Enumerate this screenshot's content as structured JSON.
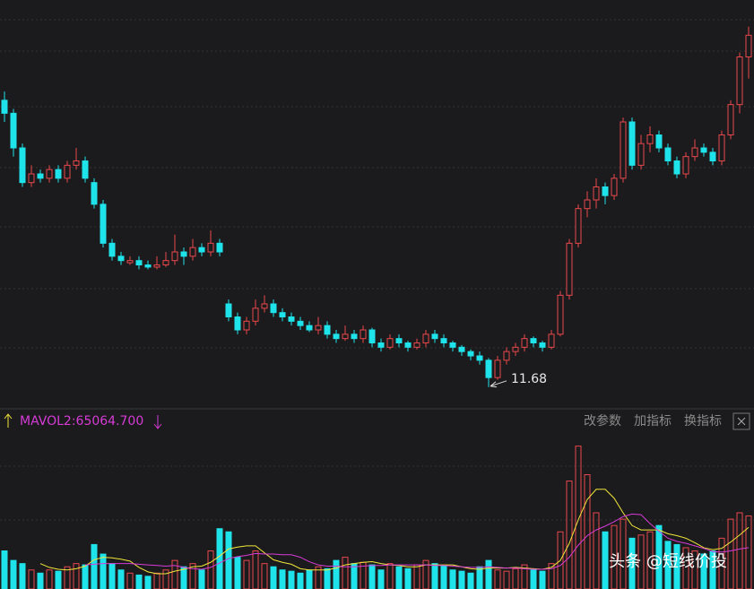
{
  "chart_data": {
    "type": "candlestick",
    "ylim": [
      11.2,
      20.2
    ],
    "up_color": "#e8474c",
    "down_color": "#1fe3ea",
    "candles": [
      [
        18.3,
        18.5,
        17.8,
        18.0
      ],
      [
        18.0,
        18.1,
        17.0,
        17.2
      ],
      [
        17.2,
        17.3,
        16.3,
        16.4
      ],
      [
        16.4,
        16.8,
        16.3,
        16.6
      ],
      [
        16.6,
        16.7,
        16.4,
        16.5
      ],
      [
        16.5,
        16.8,
        16.4,
        16.7
      ],
      [
        16.7,
        16.8,
        16.4,
        16.5
      ],
      [
        16.5,
        16.9,
        16.4,
        16.8
      ],
      [
        16.8,
        17.2,
        16.7,
        16.9
      ],
      [
        16.9,
        17.0,
        16.4,
        16.5
      ],
      [
        16.4,
        16.5,
        15.8,
        15.9
      ],
      [
        15.9,
        16.0,
        14.9,
        15.0
      ],
      [
        15.0,
        15.1,
        14.6,
        14.7
      ],
      [
        14.7,
        14.8,
        14.5,
        14.6
      ],
      [
        14.55,
        14.7,
        14.5,
        14.6
      ],
      [
        14.6,
        14.7,
        14.4,
        14.5
      ],
      [
        14.5,
        14.6,
        14.4,
        14.45
      ],
      [
        14.45,
        14.7,
        14.4,
        14.5
      ],
      [
        14.5,
        14.8,
        14.45,
        14.6
      ],
      [
        14.6,
        15.2,
        14.5,
        14.8
      ],
      [
        14.8,
        14.9,
        14.5,
        14.7
      ],
      [
        14.7,
        15.1,
        14.6,
        14.9
      ],
      [
        14.9,
        15.0,
        14.7,
        14.8
      ],
      [
        14.8,
        15.3,
        14.7,
        15.0
      ],
      [
        15.0,
        15.1,
        14.7,
        14.8
      ],
      [
        13.6,
        13.7,
        13.2,
        13.3
      ],
      [
        13.3,
        13.4,
        12.9,
        13.0
      ],
      [
        13.0,
        13.3,
        12.9,
        13.2
      ],
      [
        13.2,
        13.7,
        13.1,
        13.5
      ],
      [
        13.5,
        13.8,
        13.4,
        13.6
      ],
      [
        13.6,
        13.7,
        13.3,
        13.4
      ],
      [
        13.4,
        13.5,
        13.2,
        13.3
      ],
      [
        13.3,
        13.4,
        13.1,
        13.2
      ],
      [
        13.2,
        13.3,
        13.0,
        13.1
      ],
      [
        13.1,
        13.2,
        12.95,
        13.0
      ],
      [
        13.0,
        13.3,
        12.9,
        13.1
      ],
      [
        13.1,
        13.2,
        12.8,
        12.9
      ],
      [
        12.9,
        13.0,
        12.7,
        12.8
      ],
      [
        12.8,
        13.1,
        12.75,
        12.9
      ],
      [
        12.9,
        13.0,
        12.7,
        12.8
      ],
      [
        12.8,
        13.1,
        12.7,
        13.0
      ],
      [
        13.0,
        13.05,
        12.6,
        12.7
      ],
      [
        12.7,
        12.8,
        12.5,
        12.6
      ],
      [
        12.6,
        12.9,
        12.55,
        12.8
      ],
      [
        12.8,
        12.9,
        12.6,
        12.7
      ],
      [
        12.7,
        12.75,
        12.5,
        12.6
      ],
      [
        12.6,
        12.8,
        12.55,
        12.7
      ],
      [
        12.7,
        13.0,
        12.6,
        12.9
      ],
      [
        12.9,
        13.0,
        12.7,
        12.8
      ],
      [
        12.8,
        12.9,
        12.6,
        12.7
      ],
      [
        12.7,
        12.75,
        12.5,
        12.6
      ],
      [
        12.6,
        12.65,
        12.4,
        12.5
      ],
      [
        12.5,
        12.55,
        12.3,
        12.4
      ],
      [
        12.4,
        12.5,
        12.2,
        12.3
      ],
      [
        12.3,
        12.35,
        11.68,
        11.9
      ],
      [
        11.9,
        12.4,
        11.85,
        12.3
      ],
      [
        12.3,
        12.6,
        12.2,
        12.5
      ],
      [
        12.5,
        12.7,
        12.4,
        12.6
      ],
      [
        12.6,
        12.9,
        12.5,
        12.8
      ],
      [
        12.8,
        12.85,
        12.6,
        12.7
      ],
      [
        12.7,
        12.75,
        12.5,
        12.6
      ],
      [
        12.6,
        13.0,
        12.55,
        12.9
      ],
      [
        12.9,
        13.9,
        12.85,
        13.8
      ],
      [
        13.8,
        15.1,
        13.7,
        15.0
      ],
      [
        15.0,
        15.9,
        14.9,
        15.8
      ],
      [
        15.8,
        16.2,
        15.6,
        16.0
      ],
      [
        16.0,
        16.5,
        15.8,
        16.3
      ],
      [
        16.3,
        16.4,
        15.9,
        16.1
      ],
      [
        16.1,
        16.6,
        16.0,
        16.5
      ],
      [
        16.5,
        17.9,
        16.4,
        17.8
      ],
      [
        17.8,
        17.9,
        16.7,
        16.8
      ],
      [
        16.8,
        17.5,
        16.7,
        17.3
      ],
      [
        17.3,
        17.7,
        17.1,
        17.5
      ],
      [
        17.5,
        17.6,
        17.1,
        17.2
      ],
      [
        17.2,
        17.3,
        16.8,
        16.9
      ],
      [
        16.9,
        17.0,
        16.5,
        16.6
      ],
      [
        16.6,
        17.1,
        16.5,
        17.0
      ],
      [
        17.0,
        17.4,
        16.9,
        17.2
      ],
      [
        17.2,
        17.3,
        17.0,
        17.1
      ],
      [
        17.1,
        17.2,
        16.8,
        16.9
      ],
      [
        16.9,
        17.6,
        16.8,
        17.5
      ],
      [
        17.5,
        18.3,
        17.4,
        18.2
      ],
      [
        18.2,
        19.4,
        18.0,
        19.3
      ],
      [
        19.3,
        20.0,
        18.8,
        19.8
      ]
    ],
    "vlim": [
      0,
      240000
    ],
    "volume": [
      60000,
      45000,
      40000,
      30000,
      25000,
      30000,
      28000,
      35000,
      40000,
      38000,
      70000,
      55000,
      40000,
      30000,
      25000,
      22000,
      20000,
      25000,
      30000,
      45000,
      35000,
      40000,
      30000,
      60000,
      95000,
      90000,
      50000,
      45000,
      60000,
      40000,
      35000,
      30000,
      28000,
      25000,
      30000,
      35000,
      32000,
      45000,
      50000,
      40000,
      42000,
      38000,
      30000,
      40000,
      35000,
      32000,
      38000,
      45000,
      40000,
      36000,
      30000,
      28000,
      25000,
      35000,
      45000,
      30000,
      28000,
      32000,
      38000,
      30000,
      28000,
      40000,
      90000,
      170000,
      225000,
      180000,
      120000,
      90000,
      100000,
      110000,
      80000,
      85000,
      90000,
      100000,
      75000,
      70000,
      65000,
      60000,
      55000,
      60000,
      80000,
      110000,
      120000,
      115000
    ],
    "ma_lines": [
      {
        "color": "#f2e63a",
        "values": [
          null,
          null,
          null,
          null,
          40000,
          34000,
          31000,
          30000,
          32000,
          36000,
          46000,
          50000,
          49000,
          47000,
          44000,
          34000,
          27000,
          24000,
          24000,
          28000,
          31000,
          35000,
          36000,
          42000,
          52000,
          63000,
          66000,
          68000,
          68000,
          57000,
          46000,
          42000,
          39000,
          32000,
          30000,
          30000,
          30000,
          33000,
          38000,
          40000,
          42000,
          43000,
          40000,
          38000,
          37000,
          35000,
          35000,
          38000,
          38000,
          38000,
          38000,
          35000,
          32000,
          31000,
          33000,
          33000,
          33000,
          34000,
          33000,
          32000,
          31000,
          34000,
          45000,
          72000,
          109000,
          141000,
          157000,
          157000,
          143000,
          120000,
          100000,
          93000,
          93000,
          93000,
          87000,
          84000,
          80000,
          73000,
          65000,
          62000,
          64000,
          74000,
          85000,
          97000
        ]
      },
      {
        "color": "#d63bd6",
        "values": [
          null,
          null,
          null,
          null,
          null,
          null,
          null,
          null,
          null,
          38000,
          39000,
          40000,
          40000,
          40000,
          40000,
          39000,
          38000,
          37000,
          36000,
          37000,
          34000,
          32000,
          31000,
          34000,
          41000,
          48000,
          51000,
          53000,
          56000,
          55000,
          55000,
          54000,
          54000,
          50000,
          43000,
          38000,
          36000,
          36000,
          35000,
          35000,
          36000,
          37000,
          37000,
          38000,
          38000,
          38000,
          38000,
          38000,
          37000,
          37000,
          36000,
          35000,
          34000,
          34000,
          35000,
          34000,
          33000,
          33000,
          32000,
          31000,
          31000,
          32000,
          37000,
          50000,
          69000,
          84000,
          93000,
          99000,
          106000,
          114000,
          118000,
          117000,
          103000,
          91000,
          80000,
          75000,
          72000,
          68000,
          64000,
          59000,
          58000,
          60000,
          63000,
          65064.7
        ]
      }
    ],
    "indicator_label": "MAVOL2:65064.700",
    "buttons": [
      "改参数",
      "加指标",
      "换指标"
    ],
    "watermark": "头条 @短线价投"
  }
}
